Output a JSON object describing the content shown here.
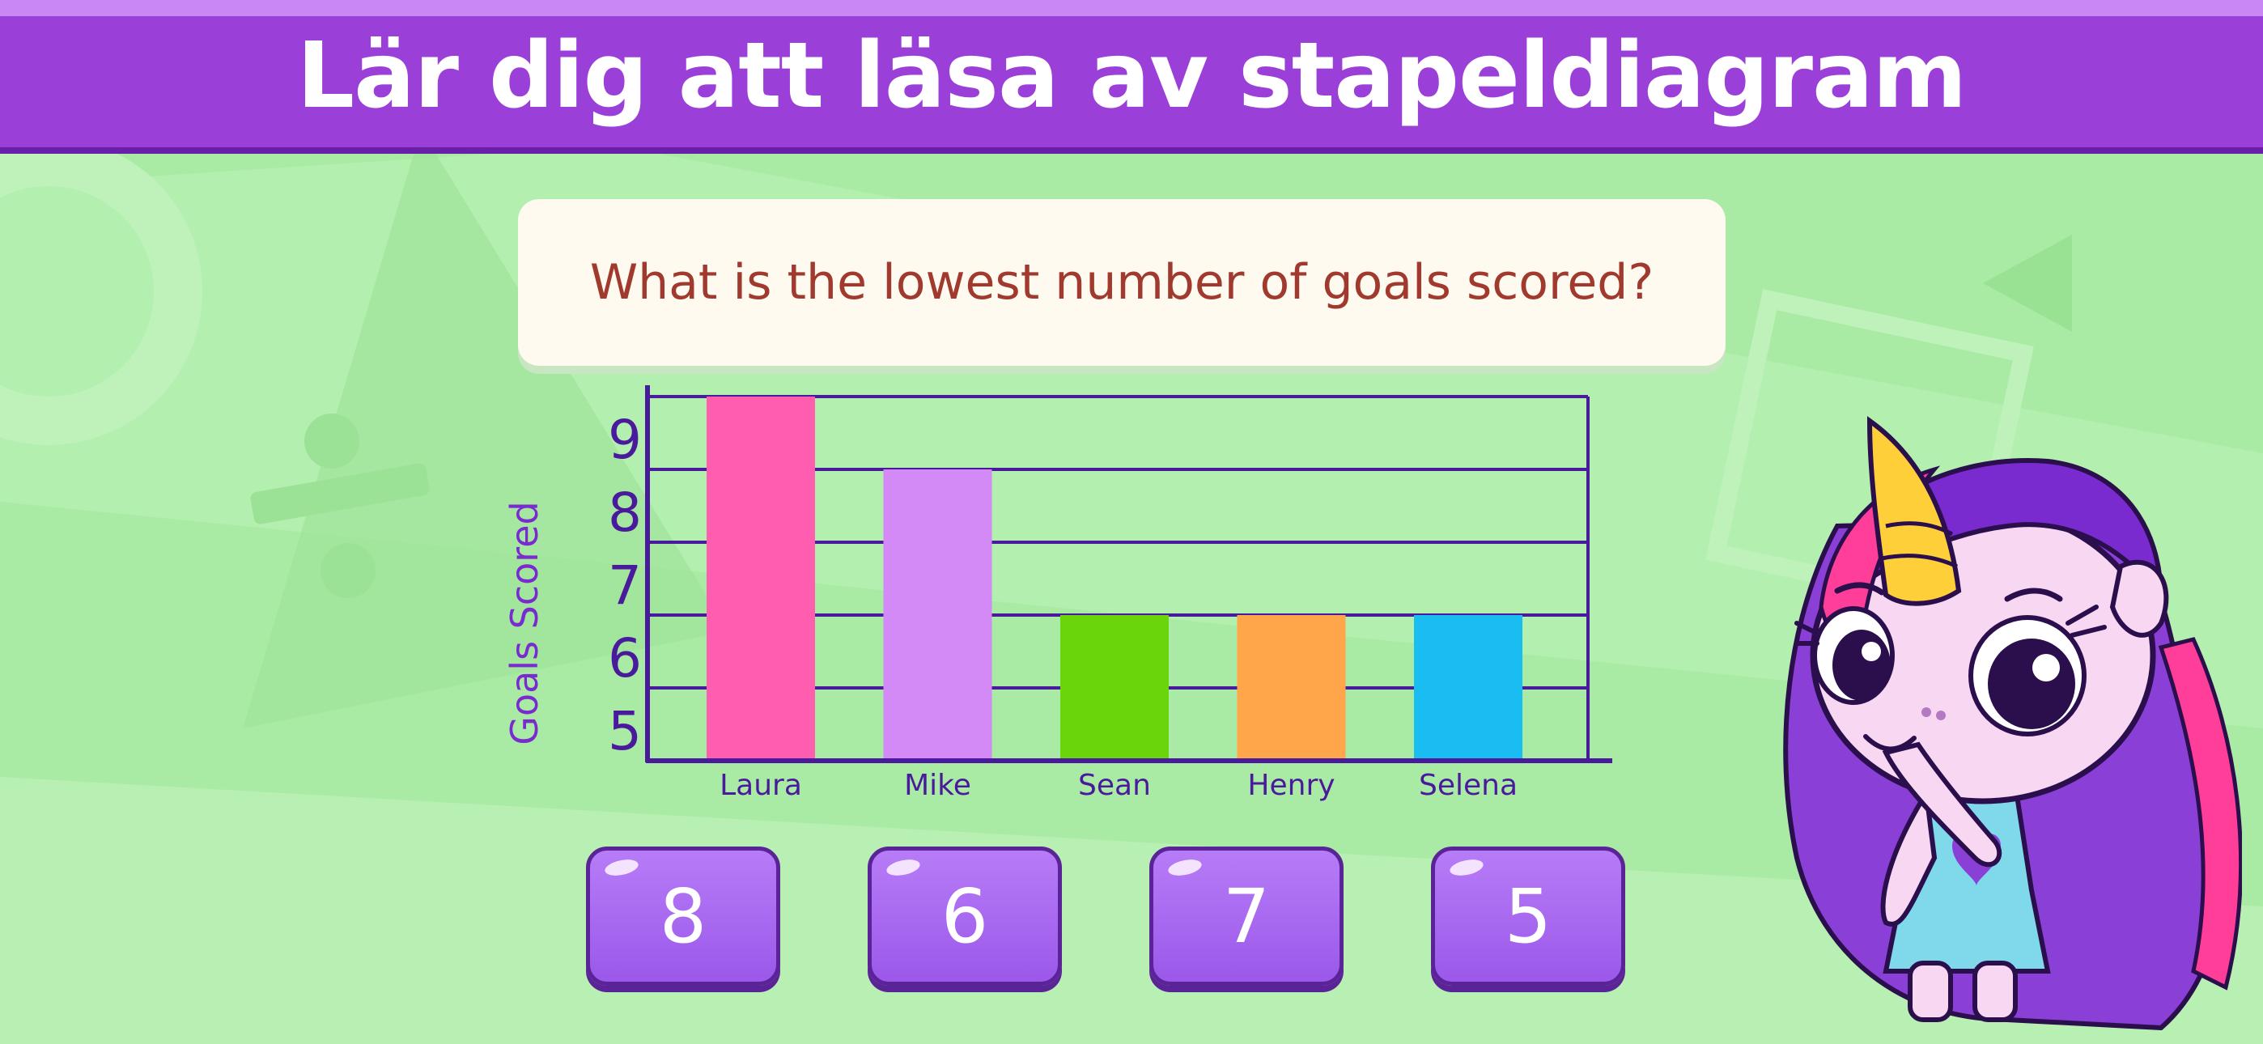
{
  "header": {
    "title": "Lär dig att läsa av stapeldiagram"
  },
  "question": {
    "text": "What is the lowest number of goals scored?"
  },
  "answers": [
    {
      "label": "8"
    },
    {
      "label": "6"
    },
    {
      "label": "7"
    },
    {
      "label": "5"
    }
  ],
  "chart_data": {
    "type": "bar",
    "ylabel": "Goals Scored",
    "xlabel": "",
    "categories": [
      "Laura",
      "Mike",
      "Sean",
      "Henry",
      "Selena"
    ],
    "values": [
      10,
      9,
      7,
      7,
      7
    ],
    "yticks": [
      "5",
      "6",
      "7",
      "8",
      "9"
    ],
    "ylim": [
      5,
      10
    ],
    "grid": true,
    "colors": [
      "#ff5eb0",
      "#d38af7",
      "#6ad50a",
      "#ffa54a",
      "#19bdf2"
    ],
    "axis_color": "#4a1a9c"
  },
  "colors": {
    "header": "#9b3fd9",
    "background": "#a9eba4",
    "question_text": "#a13a2e",
    "answer_button": "#a86af2"
  }
}
